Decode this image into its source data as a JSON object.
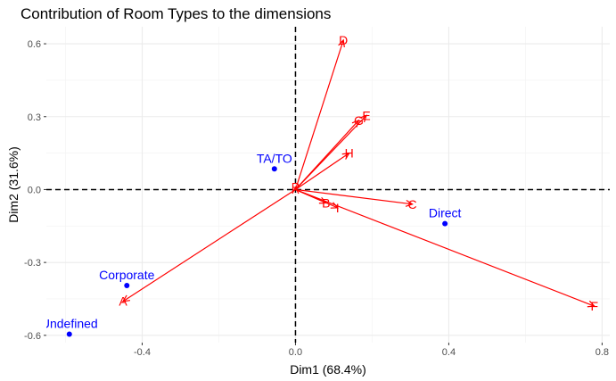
{
  "chart_data": {
    "type": "scatter",
    "title": "Contribution of Room Types to the dimensions",
    "xlabel": "Dim1 (68.4%)",
    "ylabel": "Dim2 (31.6%)",
    "xlim": [
      -0.65,
      0.82
    ],
    "ylim": [
      -0.63,
      0.67
    ],
    "x_ticks": [
      -0.4,
      0.0,
      0.4,
      0.8
    ],
    "x_tick_labels": [
      "-0.4",
      "0.0",
      "0.4",
      "0.8"
    ],
    "y_ticks": [
      -0.6,
      -0.3,
      0.0,
      0.3,
      0.6
    ],
    "y_tick_labels": [
      "-0.6",
      "-0.3",
      "0.0",
      "0.3",
      "0.6"
    ],
    "grid": true,
    "reference_lines": {
      "x": 0,
      "y": 0,
      "style": "dashed"
    },
    "arrow_color": "#ff0000",
    "point_color": "#0000ff",
    "arrows": [
      {
        "label": "D",
        "x": 0.125,
        "y": 0.615
      },
      {
        "label": "E",
        "x": 0.185,
        "y": 0.305
      },
      {
        "label": "G",
        "x": 0.165,
        "y": 0.285
      },
      {
        "label": "H",
        "x": 0.14,
        "y": 0.15
      },
      {
        "label": "P",
        "x": 0.0,
        "y": 0.01
      },
      {
        "label": "C",
        "x": 0.305,
        "y": -0.06
      },
      {
        "label": "B",
        "x": 0.08,
        "y": -0.055
      },
      {
        "label": "I",
        "x": 0.11,
        "y": -0.075
      },
      {
        "label": "F",
        "x": 0.78,
        "y": -0.48
      },
      {
        "label": "A",
        "x": -0.45,
        "y": -0.46
      }
    ],
    "points": [
      {
        "label": "TA/TO",
        "x": -0.055,
        "y": 0.085
      },
      {
        "label": "Direct",
        "x": 0.39,
        "y": -0.14
      },
      {
        "label": "Corporate",
        "x": -0.44,
        "y": -0.395
      },
      {
        "label": "Undefined",
        "x": -0.59,
        "y": -0.595
      }
    ]
  }
}
